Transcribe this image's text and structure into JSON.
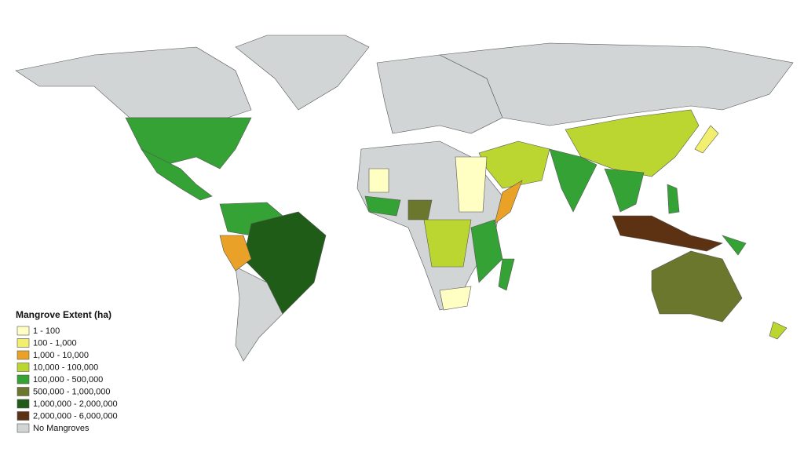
{
  "legend": {
    "title": "Mangrove Extent (ha)",
    "items": [
      {
        "label": "1 - 100",
        "color": "#ffffc4"
      },
      {
        "label": "100 - 1,000",
        "color": "#f2ee6e"
      },
      {
        "label": "1,000 - 10,000",
        "color": "#e9a227"
      },
      {
        "label": "10,000 - 100,000",
        "color": "#bcd631"
      },
      {
        "label": "100,000 - 500,000",
        "color": "#34a234"
      },
      {
        "label": "500,000 - 1,000,000",
        "color": "#6b772c"
      },
      {
        "label": "1,000,000 - 2,000,000",
        "color": "#1f5c17"
      },
      {
        "label": "2,000,000 - 6,000,000",
        "color": "#5c3212"
      },
      {
        "label": "No Mangroves",
        "color": "#d1d5d5"
      }
    ]
  }
}
